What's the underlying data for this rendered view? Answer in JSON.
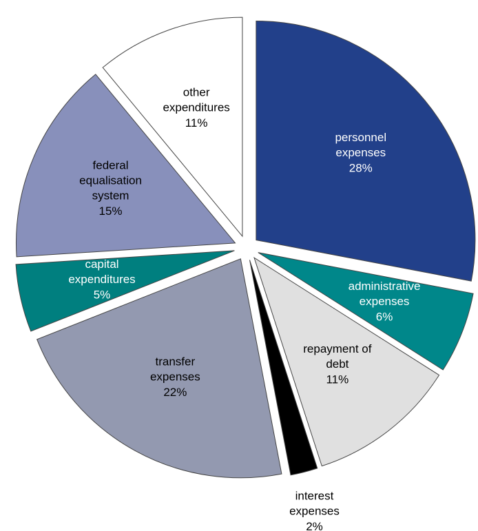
{
  "chart_data": {
    "type": "pie",
    "categories": [
      "personnel expenses",
      "administrative expenses",
      "repayment of debt",
      "interest expenses",
      "transfer expenses",
      "capital expenditures",
      "federal equalisation system",
      "other expenditures"
    ],
    "values": [
      28,
      6,
      11,
      2,
      22,
      5,
      15,
      11
    ],
    "value_labels": [
      "28%",
      "6%",
      "11%",
      "2%",
      "22%",
      "5%",
      "15%",
      "11%"
    ],
    "colors": [
      "#22408a",
      "#00878a",
      "#e0e0e0",
      "#000000",
      "#9399b0",
      "#007f7f",
      "#8890bb",
      "#ffffff"
    ]
  }
}
